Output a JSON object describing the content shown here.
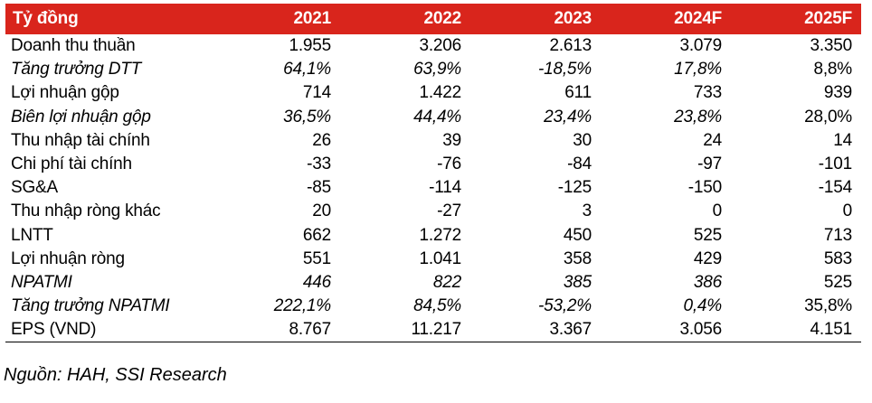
{
  "table": {
    "header": [
      "Tỷ đồng",
      "2021",
      "2022",
      "2023",
      "2024F",
      "2025F"
    ],
    "rows": [
      {
        "label": "Doanh thu thuần",
        "values": [
          "1.955",
          "3.206",
          "2.613",
          "3.079",
          "3.350"
        ],
        "italic": false
      },
      {
        "label": "Tăng trưởng DTT",
        "values": [
          "64,1%",
          "63,9%",
          "-18,5%",
          "17,8%",
          "8,8%"
        ],
        "italic": true
      },
      {
        "label": "Lợi nhuận gộp",
        "values": [
          "714",
          "1.422",
          "611",
          "733",
          "939"
        ],
        "italic": false
      },
      {
        "label": "Biên lợi nhuận gộp",
        "values": [
          "36,5%",
          "44,4%",
          "23,4%",
          "23,8%",
          "28,0%"
        ],
        "italic": true
      },
      {
        "label": "Thu nhập tài chính",
        "values": [
          "26",
          "39",
          "30",
          "24",
          "14"
        ],
        "italic": false
      },
      {
        "label": "Chi phí tài chính",
        "values": [
          "-33",
          "-76",
          "-84",
          "-97",
          "-101"
        ],
        "italic": false
      },
      {
        "label": "SG&A",
        "values": [
          "-85",
          "-114",
          "-125",
          "-150",
          "-154"
        ],
        "italic": false
      },
      {
        "label": "Thu nhập ròng khác",
        "values": [
          "20",
          "-27",
          "3",
          "0",
          "0"
        ],
        "italic": false
      },
      {
        "label": "LNTT",
        "values": [
          "662",
          "1.272",
          "450",
          "525",
          "713"
        ],
        "italic": false
      },
      {
        "label": "Lợi nhuận ròng",
        "values": [
          "551",
          "1.041",
          "358",
          "429",
          "583"
        ],
        "italic": false
      },
      {
        "label": "NPATMI",
        "values": [
          "446",
          "822",
          "385",
          "386",
          "525"
        ],
        "italic": true
      },
      {
        "label": "Tăng trưởng NPATMI",
        "values": [
          "222,1%",
          "84,5%",
          "-53,2%",
          "0,4%",
          "35,8%"
        ],
        "italic": true
      },
      {
        "label": "EPS (VND)",
        "values": [
          "8.767",
          "11.217",
          "3.367",
          "3.056",
          "4.151"
        ],
        "italic": false
      }
    ]
  },
  "source": "Nguồn: HAH, SSI Research",
  "colors": {
    "header_bg": "#d9251c",
    "header_text": "#ffffff"
  }
}
